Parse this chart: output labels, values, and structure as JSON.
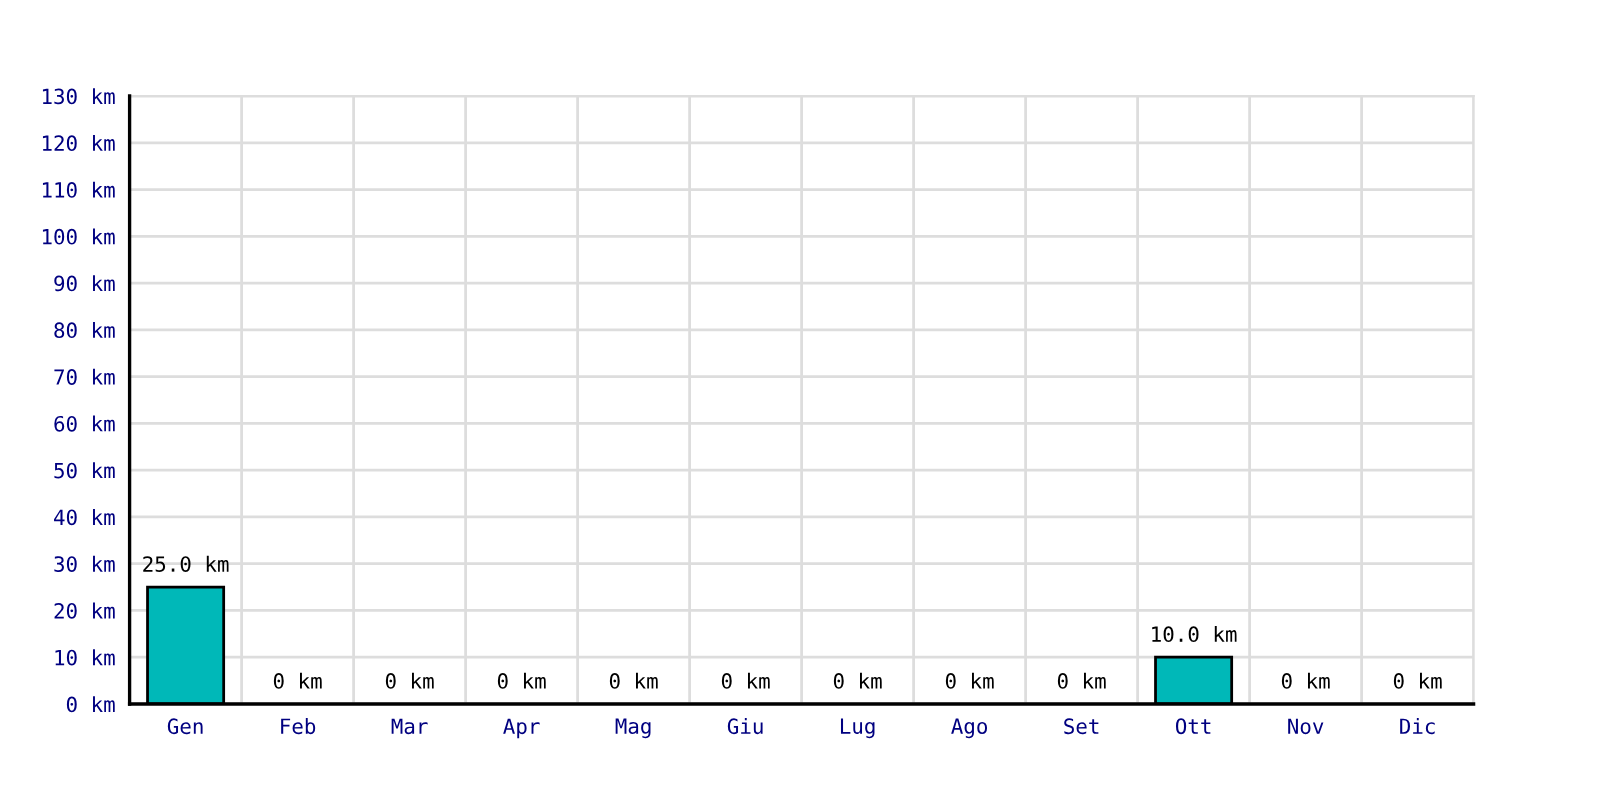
{
  "chart_data": {
    "type": "bar",
    "categories": [
      "Gen",
      "Feb",
      "Mar",
      "Apr",
      "Mag",
      "Giu",
      "Lug",
      "Ago",
      "Set",
      "Ott",
      "Nov",
      "Dic"
    ],
    "values": [
      25,
      0,
      0,
      0,
      0,
      0,
      0,
      0,
      0,
      10,
      0,
      0
    ],
    "value_labels": [
      "25.0 km",
      "0 km",
      "0 km",
      "0 km",
      "0 km",
      "0 km",
      "0 km",
      "0 km",
      "0 km",
      "10.0 km",
      "0 km",
      "0 km"
    ],
    "color": "#00b8b8",
    "ylim": [
      0,
      130
    ],
    "yticks": [
      {
        "value": 0,
        "label": "0 km"
      },
      {
        "value": 10,
        "label": "10 km"
      },
      {
        "value": 20,
        "label": "20 km"
      },
      {
        "value": 30,
        "label": "30 km"
      },
      {
        "value": 40,
        "label": "40 km"
      },
      {
        "value": 50,
        "label": "50 km"
      },
      {
        "value": 60,
        "label": "60 km"
      },
      {
        "value": 70,
        "label": "70 km"
      },
      {
        "value": 80,
        "label": "80 km"
      },
      {
        "value": 90,
        "label": "90 km"
      },
      {
        "value": 100,
        "label": "100 km"
      },
      {
        "value": 110,
        "label": "110 km"
      },
      {
        "value": 120,
        "label": "120 km"
      },
      {
        "value": 130,
        "label": "130 km"
      }
    ],
    "grid": true,
    "legend": false
  }
}
